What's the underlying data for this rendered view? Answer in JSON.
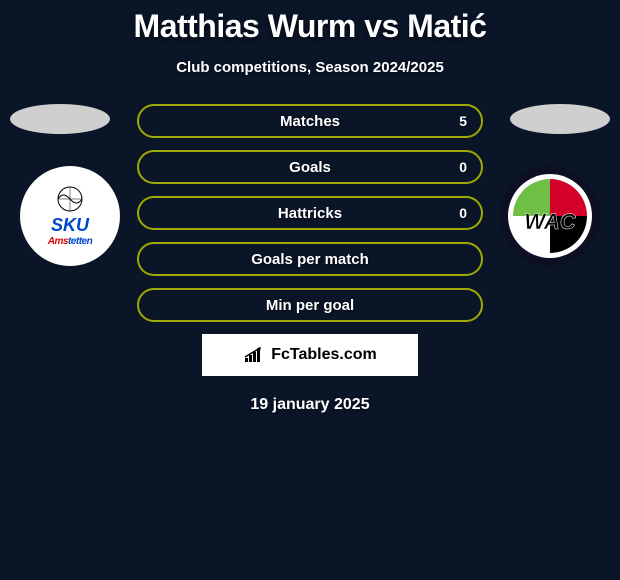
{
  "title": "Matthias Wurm vs Matić",
  "subtitle": "Club competitions, Season 2024/2025",
  "date": "19 january 2025",
  "brand": "FcTables.com",
  "colors": {
    "bar_border": "#9daa00",
    "bar_fill": "#0a1528",
    "background": "#0a1528",
    "text": "#ffffff"
  },
  "stats": [
    {
      "label": "Matches",
      "value": "5",
      "show_value": true
    },
    {
      "label": "Goals",
      "value": "0",
      "show_value": true
    },
    {
      "label": "Hattricks",
      "value": "0",
      "show_value": true
    },
    {
      "label": "Goals per match",
      "value": "",
      "show_value": false
    },
    {
      "label": "Min per goal",
      "value": "",
      "show_value": false
    }
  ],
  "left_club": "SKU Amstetten",
  "right_club": "Wolfsberger AC"
}
